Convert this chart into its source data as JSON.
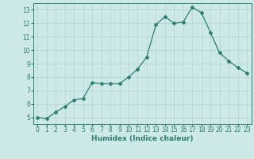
{
  "x": [
    0,
    1,
    2,
    3,
    4,
    5,
    6,
    7,
    8,
    9,
    10,
    11,
    12,
    13,
    14,
    15,
    16,
    17,
    18,
    19,
    20,
    21,
    22,
    23
  ],
  "y": [
    5.0,
    4.9,
    5.4,
    5.8,
    6.3,
    6.4,
    7.6,
    7.5,
    7.5,
    7.5,
    8.0,
    8.6,
    9.5,
    11.9,
    12.5,
    12.0,
    12.1,
    13.2,
    12.8,
    11.3,
    9.8,
    9.2,
    8.7,
    8.3
  ],
  "line_color": "#2e7d72",
  "marker": "D",
  "marker_size": 2.0,
  "bg_color": "#cce9e7",
  "grid_color": "#b0d4d2",
  "xlabel": "Humidex (Indice chaleur)",
  "xlim": [
    -0.5,
    23.5
  ],
  "ylim": [
    4.5,
    13.5
  ],
  "yticks": [
    5,
    6,
    7,
    8,
    9,
    10,
    11,
    12,
    13
  ],
  "xticks": [
    0,
    1,
    2,
    3,
    4,
    5,
    6,
    7,
    8,
    9,
    10,
    11,
    12,
    13,
    14,
    15,
    16,
    17,
    18,
    19,
    20,
    21,
    22,
    23
  ],
  "tick_color": "#2e7d72",
  "label_fontsize": 6.5,
  "tick_fontsize": 5.5,
  "linewidth": 0.9
}
